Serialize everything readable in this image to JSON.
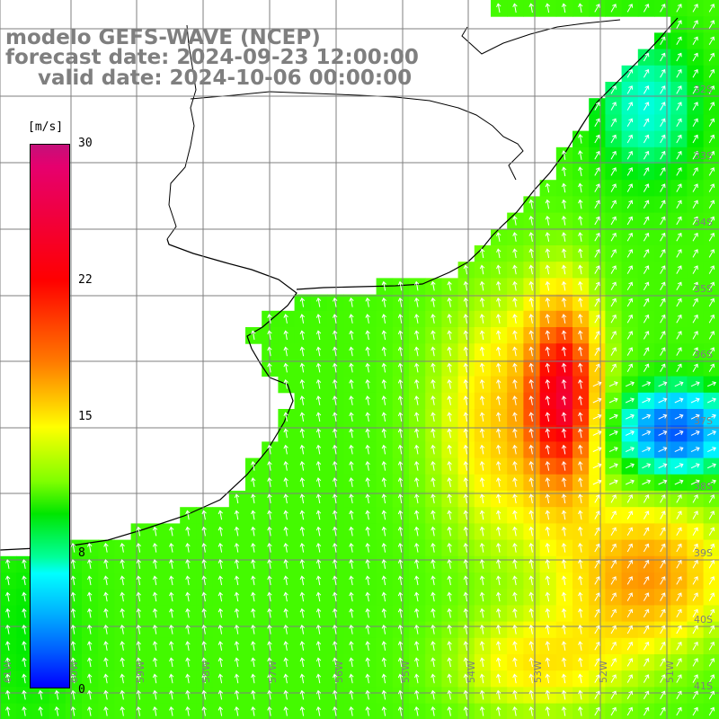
{
  "header": {
    "model": "modelo GEFS-WAVE (NCEP)",
    "forecast": "forecast date: 2024-09-23 12:00:00",
    "valid": "valid date: 2024-10-06 00:00:00"
  },
  "colorbar": {
    "unit": "[m/s]",
    "ticks": [
      "30",
      "22",
      "15",
      "8",
      "0"
    ],
    "values": [
      30,
      22,
      15,
      8,
      0
    ]
  },
  "axes": {
    "lat_labels": [
      "32S",
      "33S",
      "34S",
      "35S",
      "36S",
      "37S",
      "38S",
      "39S",
      "40S",
      "41S"
    ],
    "lon_labels": [
      "61W",
      "60W",
      "59W",
      "58W",
      "57W",
      "56W",
      "55W",
      "54W",
      "53W",
      "52W",
      "51W"
    ]
  },
  "colors": {
    "land": "#ffffff",
    "coast": "#000000",
    "grid": "#7f7f7f",
    "label": "#7f7f7f",
    "arrow": "#ffffff"
  },
  "map": {
    "field": "wind speed [m/s]",
    "wind_direction": "mostly from the south / south-east",
    "max_region": "around 36S-38S, 53.5W (about 22-25 m/s)",
    "min_region": "east of 53W near 37S (about 6-9 m/s)"
  }
}
